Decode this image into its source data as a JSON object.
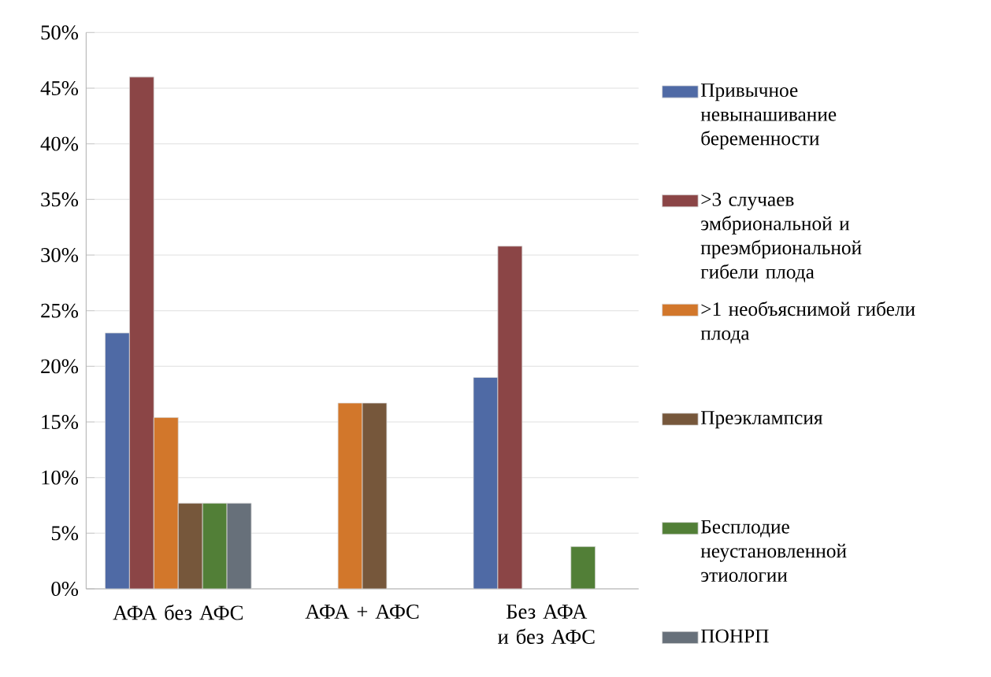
{
  "chart_data": {
    "type": "bar",
    "categories": [
      "АФА без АФС",
      "АФА + АФС",
      "Без АФА и без АФС"
    ],
    "series": [
      {
        "name": "Привычное невынашивание беременности",
        "color": "#4f6aa5",
        "values": [
          23,
          null,
          19
        ]
      },
      {
        "name": ">3 случаев эмбриональной и преэмбриональной гибели плода",
        "color": "#8b4546",
        "values": [
          46,
          null,
          30.8
        ]
      },
      {
        "name": ">1 необъяснимой гибели плода",
        "color": "#d2772b",
        "values": [
          15.4,
          16.7,
          null
        ]
      },
      {
        "name": "Преэклампсия",
        "color": "#76573b",
        "values": [
          7.7,
          16.7,
          null
        ]
      },
      {
        "name": "Бесплодие неустановленной этиологии",
        "color": "#527f37",
        "values": [
          7.7,
          null,
          3.8
        ]
      },
      {
        "name": "ПОНРП",
        "color": "#67707a",
        "values": [
          7.7,
          null,
          null
        ]
      }
    ],
    "ylim": [
      0,
      50
    ],
    "yticks": [
      {
        "value": 0,
        "label": "0%"
      },
      {
        "value": 5,
        "label": "5%"
      },
      {
        "value": 10,
        "label": "10%"
      },
      {
        "value": 15,
        "label": "15%"
      },
      {
        "value": 20,
        "label": "20%"
      },
      {
        "value": 25,
        "label": "25%"
      },
      {
        "value": 30,
        "label": "30%"
      },
      {
        "value": 35,
        "label": "35%"
      },
      {
        "value": 40,
        "label": "40%"
      },
      {
        "value": 45,
        "label": "45%"
      },
      {
        "value": 50,
        "label": "50%"
      }
    ],
    "grid": "y",
    "legend": "right"
  }
}
